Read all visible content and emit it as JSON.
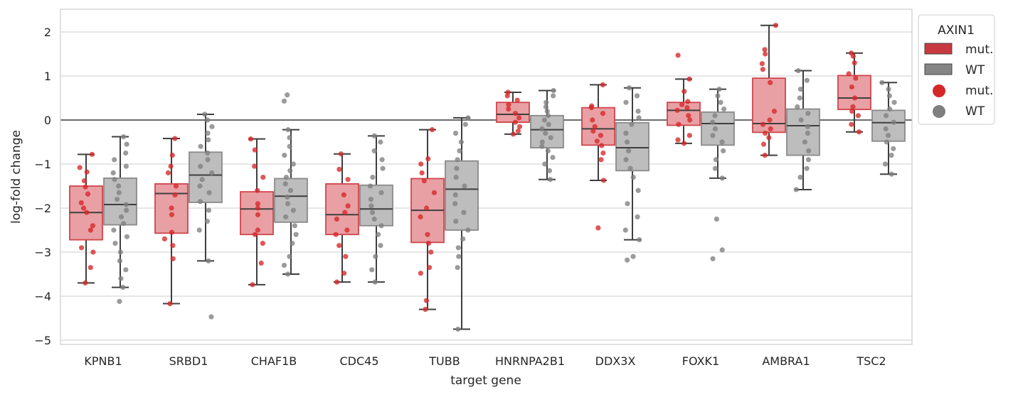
{
  "chart_data": {
    "type": "boxplot-strip",
    "xlabel": "target gene",
    "ylabel": "log-fold change",
    "ylim": [
      -5.1,
      2.5
    ],
    "yticks": [
      2,
      1,
      0,
      -1,
      -2,
      -3,
      -4,
      -5
    ],
    "ytick_labels": [
      "2",
      "1",
      "0",
      "−1",
      "−2",
      "−3",
      "−4",
      "−5"
    ],
    "grid": true,
    "reference_line": 0,
    "categories": [
      "KPNB1",
      "SRBD1",
      "CHAF1B",
      "CDC45",
      "TUBB",
      "HNRNPA2B1",
      "DDX3X",
      "FOXK1",
      "AMBRA1",
      "TSC2"
    ],
    "legend": {
      "title": "AXIN1",
      "placement": "outside-top-right",
      "box_entries": [
        "mut.",
        "WT"
      ],
      "point_entries": [
        "mut.",
        "WT"
      ]
    },
    "series": [
      {
        "name": "mut.",
        "box_color": "#e8a0a4",
        "edge_color": "#d0454b",
        "point_color": "#d62728",
        "boxes": [
          {
            "whislo": -3.7,
            "q1": -2.72,
            "med": -2.1,
            "q3": -1.5,
            "whishi": -0.78
          },
          {
            "whislo": -4.17,
            "q1": -2.57,
            "med": -1.67,
            "q3": -1.45,
            "whishi": -0.42
          },
          {
            "whislo": -3.74,
            "q1": -2.6,
            "med": -2.02,
            "q3": -1.63,
            "whishi": -0.43
          },
          {
            "whislo": -3.68,
            "q1": -2.6,
            "med": -2.15,
            "q3": -1.45,
            "whishi": -0.77
          },
          {
            "whislo": -4.3,
            "q1": -2.78,
            "med": -2.05,
            "q3": -1.33,
            "whishi": -0.22
          },
          {
            "whislo": -0.32,
            "q1": -0.05,
            "med": 0.13,
            "q3": 0.4,
            "whishi": 0.63
          },
          {
            "whislo": -1.37,
            "q1": -0.57,
            "med": -0.2,
            "q3": 0.28,
            "whishi": 0.8
          },
          {
            "whislo": -0.53,
            "q1": -0.12,
            "med": 0.22,
            "q3": 0.4,
            "whishi": 0.93
          },
          {
            "whislo": -0.8,
            "q1": -0.28,
            "med": -0.08,
            "q3": 0.95,
            "whishi": 2.15
          },
          {
            "whislo": -0.27,
            "q1": 0.24,
            "med": 0.5,
            "q3": 1.01,
            "whishi": 1.52
          }
        ],
        "points": [
          [
            -0.78,
            -1.08,
            -1.18,
            -1.38,
            -1.52,
            -1.68,
            -1.88,
            -2.0,
            -2.1,
            -2.4,
            -2.5,
            -2.9,
            -3.0,
            -3.35,
            -3.7
          ],
          [
            -0.42,
            -0.8,
            -1.05,
            -1.2,
            -1.5,
            -1.7,
            -2.0,
            -2.15,
            -2.55,
            -2.7,
            -2.85,
            -3.15,
            -4.17
          ],
          [
            -0.43,
            -0.68,
            -1.05,
            -1.3,
            -1.6,
            -1.9,
            -2.0,
            -2.15,
            -2.5,
            -2.6,
            -2.8,
            -3.25,
            -3.74
          ],
          [
            -0.77,
            -1.12,
            -1.35,
            -1.7,
            -1.95,
            -2.1,
            -2.25,
            -2.5,
            -2.6,
            -2.85,
            -3.1,
            -3.48,
            -3.68
          ],
          [
            -0.22,
            -0.88,
            -1.0,
            -1.2,
            -1.38,
            -1.65,
            -2.0,
            -2.2,
            -2.6,
            -2.8,
            -3.0,
            -3.35,
            -3.48,
            -4.1,
            -4.3
          ],
          [
            0.63,
            0.55,
            0.45,
            0.35,
            0.25,
            0.15,
            0.05,
            -0.05,
            -0.15,
            -0.25,
            -0.32
          ],
          [
            0.8,
            0.32,
            0.28,
            0.15,
            0.0,
            -0.15,
            -0.25,
            -0.35,
            -0.48,
            -0.58,
            -0.75,
            -0.9,
            -1.37,
            -2.45
          ],
          [
            1.47,
            0.93,
            0.65,
            0.42,
            0.35,
            0.28,
            0.22,
            0.1,
            0.0,
            -0.1,
            -0.35,
            -0.45,
            -0.53
          ],
          [
            2.15,
            1.6,
            1.5,
            1.28,
            1.15,
            0.85,
            0.2,
            0.0,
            -0.1,
            -0.2,
            -0.3,
            -0.4,
            -0.55,
            -0.8
          ],
          [
            1.52,
            1.45,
            1.3,
            1.05,
            0.95,
            0.75,
            0.5,
            0.3,
            0.2,
            0.1,
            -0.1,
            -0.27
          ]
        ]
      },
      {
        "name": "WT",
        "box_color": "#bdbdbd",
        "edge_color": "#8a8a8a",
        "point_color": "#7f7f7f",
        "boxes": [
          {
            "whislo": -3.8,
            "q1": -2.38,
            "med": -1.92,
            "q3": -1.32,
            "whishi": -0.38
          },
          {
            "whislo": -3.2,
            "q1": -1.87,
            "med": -1.25,
            "q3": -0.73,
            "whishi": 0.13
          },
          {
            "whislo": -3.5,
            "q1": -2.32,
            "med": -1.73,
            "q3": -1.33,
            "whishi": -0.22
          },
          {
            "whislo": -3.68,
            "q1": -2.4,
            "med": -2.02,
            "q3": -1.48,
            "whishi": -0.36
          },
          {
            "whislo": -4.75,
            "q1": -2.5,
            "med": -1.57,
            "q3": -0.93,
            "whishi": 0.05
          },
          {
            "whislo": -1.35,
            "q1": -0.63,
            "med": -0.22,
            "q3": 0.1,
            "whishi": 0.67
          },
          {
            "whislo": -2.72,
            "q1": -1.15,
            "med": -0.63,
            "q3": -0.06,
            "whishi": 0.73
          },
          {
            "whislo": -1.32,
            "q1": -0.57,
            "med": -0.08,
            "q3": 0.18,
            "whishi": 0.7
          },
          {
            "whislo": -1.58,
            "q1": -0.8,
            "med": -0.13,
            "q3": 0.25,
            "whishi": 1.12
          },
          {
            "whislo": -1.23,
            "q1": -0.48,
            "med": -0.06,
            "q3": 0.22,
            "whishi": 0.85
          }
        ],
        "points": [
          [
            -0.38,
            -0.55,
            -0.75,
            -0.9,
            -1.05,
            -1.2,
            -1.35,
            -1.5,
            -1.65,
            -1.8,
            -1.92,
            -2.05,
            -2.2,
            -2.35,
            -2.5,
            -2.65,
            -2.8,
            -3.0,
            -3.2,
            -3.4,
            -3.6,
            -3.8,
            -4.12
          ],
          [
            0.13,
            0.0,
            -0.15,
            -0.3,
            -0.45,
            -0.6,
            -0.75,
            -0.9,
            -1.05,
            -1.2,
            -1.35,
            -1.5,
            -1.65,
            -1.85,
            -2.05,
            -2.3,
            -2.5,
            -3.2,
            -4.47
          ],
          [
            0.57,
            0.43,
            -0.22,
            -0.4,
            -0.6,
            -0.8,
            -1.0,
            -1.15,
            -1.3,
            -1.45,
            -1.6,
            -1.75,
            -1.9,
            -2.05,
            -2.2,
            -2.4,
            -2.6,
            -2.8,
            -3.1,
            -3.3,
            -3.5
          ],
          [
            -0.36,
            -0.5,
            -0.7,
            -0.9,
            -1.1,
            -1.3,
            -1.5,
            -1.65,
            -1.8,
            -1.95,
            -2.1,
            -2.25,
            -2.4,
            -2.6,
            -2.85,
            -3.1,
            -3.4,
            -3.68
          ],
          [
            0.05,
            -0.1,
            -0.3,
            -0.5,
            -0.7,
            -0.9,
            -1.1,
            -1.3,
            -1.5,
            -1.7,
            -1.9,
            -2.1,
            -2.3,
            -2.5,
            -2.7,
            -2.9,
            -3.1,
            -3.35,
            -4.75
          ],
          [
            0.67,
            0.55,
            0.4,
            0.3,
            0.2,
            0.1,
            0.0,
            -0.1,
            -0.2,
            -0.3,
            -0.4,
            -0.5,
            -0.6,
            -0.7,
            -0.85,
            -1.0,
            -1.15,
            -1.35
          ],
          [
            0.73,
            0.55,
            0.4,
            0.2,
            0.05,
            -0.1,
            -0.3,
            -0.5,
            -0.7,
            -0.9,
            -1.1,
            -1.3,
            -1.6,
            -1.9,
            -2.2,
            -2.5,
            -2.72,
            -3.1,
            -3.18
          ],
          [
            0.7,
            0.55,
            0.4,
            0.25,
            0.1,
            -0.05,
            -0.2,
            -0.35,
            -0.5,
            -0.7,
            -0.9,
            -1.1,
            -1.32,
            -2.25,
            -2.95,
            -3.15
          ],
          [
            1.12,
            0.9,
            0.7,
            0.5,
            0.3,
            0.15,
            0.0,
            -0.15,
            -0.3,
            -0.5,
            -0.7,
            -0.9,
            -1.1,
            -1.3,
            -1.58
          ],
          [
            0.85,
            0.7,
            0.55,
            0.4,
            0.25,
            0.1,
            -0.05,
            -0.2,
            -0.35,
            -0.5,
            -0.65,
            -0.8,
            -1.0,
            -1.23
          ]
        ]
      }
    ]
  }
}
